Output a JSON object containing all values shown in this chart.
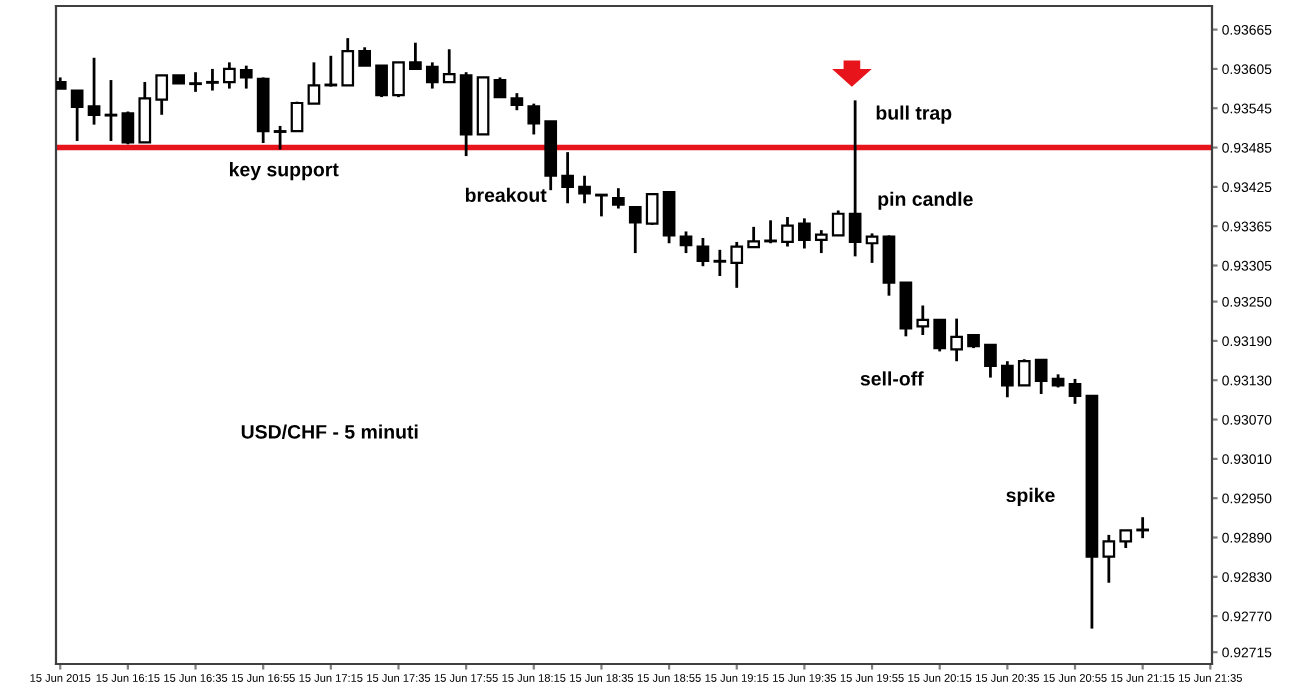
{
  "chart_data": {
    "type": "candlestick",
    "title": "USD/CHF - 5 minuti",
    "annotations": [
      "key support",
      "breakout",
      "bull trap",
      "pin candle",
      "sell-off",
      "spike"
    ],
    "categories": [
      "15 Jun 2015",
      null,
      null,
      null,
      "15 Jun 16:15",
      null,
      null,
      null,
      "15 Jun 16:35",
      null,
      null,
      null,
      "15 Jun 16:55",
      null,
      null,
      null,
      "15 Jun 17:15",
      null,
      null,
      null,
      "15 Jun 17:35",
      null,
      null,
      null,
      "15 Jun 17:55",
      null,
      null,
      null,
      "15 Jun 18:15",
      null,
      null,
      null,
      "15 Jun 18:35",
      null,
      null,
      null,
      "15 Jun 18:55",
      null,
      null,
      null,
      "15 Jun 19:15",
      null,
      null,
      null,
      "15 Jun 19:35",
      null,
      null,
      null,
      "15 Jun 19:55",
      null,
      null,
      null,
      "15 Jun 20:15",
      null,
      null,
      null,
      "15 Jun 20:35",
      null,
      null,
      null,
      "15 Jun 20:55",
      null,
      null,
      null,
      "15 Jun 21:15",
      null,
      null,
      null,
      "15 Jun 21:35"
    ],
    "ohlc": [
      [
        0.93585,
        0.93592,
        0.93575,
        0.93575
      ],
      [
        0.93572,
        0.93572,
        0.93495,
        0.93547
      ],
      [
        0.93548,
        0.93622,
        0.9352,
        0.93535
      ],
      [
        0.93535,
        0.93588,
        0.93495,
        0.93534
      ],
      [
        0.93537,
        0.9354,
        0.9349,
        0.93493
      ],
      [
        0.93493,
        0.93585,
        0.93493,
        0.9356
      ],
      [
        0.93558,
        0.93595,
        0.93535,
        0.93595
      ],
      [
        0.93595,
        0.93595,
        0.93583,
        0.93583
      ],
      [
        0.93583,
        0.936,
        0.9357,
        0.93582
      ],
      [
        0.93585,
        0.93605,
        0.93572,
        0.93584
      ],
      [
        0.93585,
        0.93615,
        0.93575,
        0.93605
      ],
      [
        0.93603,
        0.9361,
        0.93575,
        0.93592
      ],
      [
        0.9359,
        0.93592,
        0.93492,
        0.9351
      ],
      [
        0.9351,
        0.93518,
        0.93482,
        0.93509
      ],
      [
        0.9351,
        0.93555,
        0.9351,
        0.93553
      ],
      [
        0.93552,
        0.93615,
        0.93552,
        0.9358
      ],
      [
        0.9358,
        0.93625,
        0.93578,
        0.93581
      ],
      [
        0.9358,
        0.93652,
        0.9358,
        0.93632
      ],
      [
        0.93632,
        0.93638,
        0.9361,
        0.9361
      ],
      [
        0.9361,
        0.9361,
        0.93562,
        0.93565
      ],
      [
        0.93565,
        0.93615,
        0.93562,
        0.93615
      ],
      [
        0.93615,
        0.93645,
        0.93605,
        0.93605
      ],
      [
        0.93608,
        0.93615,
        0.93575,
        0.93585
      ],
      [
        0.93585,
        0.93635,
        0.93585,
        0.93597
      ],
      [
        0.93595,
        0.936,
        0.93472,
        0.93505
      ],
      [
        0.93505,
        0.93592,
        0.93505,
        0.93592
      ],
      [
        0.93588,
        0.93592,
        0.93562,
        0.93562
      ],
      [
        0.9356,
        0.93568,
        0.93542,
        0.9355
      ],
      [
        0.93548,
        0.93552,
        0.93505,
        0.93522
      ],
      [
        0.93525,
        0.93525,
        0.9342,
        0.93442
      ],
      [
        0.93442,
        0.93478,
        0.934,
        0.93425
      ],
      [
        0.93425,
        0.93442,
        0.934,
        0.93415
      ],
      [
        0.93413,
        0.93413,
        0.9338,
        0.93412
      ],
      [
        0.93408,
        0.93423,
        0.93392,
        0.93398
      ],
      [
        0.93394,
        0.93394,
        0.93324,
        0.93371
      ],
      [
        0.93369,
        0.93414,
        0.93367,
        0.93414
      ],
      [
        0.93417,
        0.93417,
        0.93339,
        0.93351
      ],
      [
        0.93349,
        0.93357,
        0.93324,
        0.93336
      ],
      [
        0.93334,
        0.93347,
        0.93304,
        0.93312
      ],
      [
        0.93312,
        0.93329,
        0.93289,
        0.93311
      ],
      [
        0.93309,
        0.93341,
        0.93271,
        0.93334
      ],
      [
        0.93333,
        0.93364,
        0.93333,
        0.93342
      ],
      [
        0.93342,
        0.93374,
        0.93339,
        0.93343
      ],
      [
        0.93341,
        0.93379,
        0.93334,
        0.93366
      ],
      [
        0.93369,
        0.93377,
        0.93331,
        0.93344
      ],
      [
        0.93344,
        0.93359,
        0.93324,
        0.93352
      ],
      [
        0.93351,
        0.93389,
        0.93351,
        0.93384
      ],
      [
        0.93384,
        0.93557,
        0.93319,
        0.93341
      ],
      [
        0.93339,
        0.93354,
        0.93309,
        0.93349
      ],
      [
        0.93349,
        0.93351,
        0.93259,
        0.93279
      ],
      [
        0.93279,
        0.93279,
        0.93197,
        0.93209
      ],
      [
        0.93212,
        0.93244,
        0.93199,
        0.93222
      ],
      [
        0.93222,
        0.93222,
        0.93174,
        0.93179
      ],
      [
        0.93177,
        0.93224,
        0.93159,
        0.93196
      ],
      [
        0.93199,
        0.93199,
        0.93179,
        0.93182
      ],
      [
        0.93184,
        0.93184,
        0.93134,
        0.93152
      ],
      [
        0.93152,
        0.93159,
        0.93104,
        0.93122
      ],
      [
        0.93122,
        0.93162,
        0.93122,
        0.93159
      ],
      [
        0.93161,
        0.93161,
        0.93109,
        0.93129
      ],
      [
        0.93132,
        0.93139,
        0.93119,
        0.93122
      ],
      [
        0.93124,
        0.93132,
        0.93094,
        0.93106
      ],
      [
        0.93106,
        0.93106,
        0.92751,
        0.92861
      ],
      [
        0.92861,
        0.92894,
        0.92821,
        0.92884
      ],
      [
        0.92884,
        0.92901,
        0.92874,
        0.92901
      ],
      [
        0.92901,
        0.92921,
        0.92889,
        0.92902
      ],
      null,
      null,
      null,
      null
    ],
    "ylim": [
      0.92697,
      0.93701
    ],
    "yticks": [
      {
        "value": 0.93665,
        "label": "0.93665"
      },
      {
        "value": 0.93605,
        "label": "0.93605"
      },
      {
        "value": 0.93545,
        "label": "0.93545"
      },
      {
        "value": 0.93485,
        "label": "0.93485"
      },
      {
        "value": 0.93425,
        "label": "0.93425"
      },
      {
        "value": 0.93365,
        "label": "0.93365"
      },
      {
        "value": 0.93305,
        "label": "0.93305"
      },
      {
        "value": 0.9325,
        "label": "0.93250"
      },
      {
        "value": 0.9319,
        "label": "0.93190"
      },
      {
        "value": 0.9313,
        "label": "0.93130"
      },
      {
        "value": 0.9307,
        "label": "0.93070"
      },
      {
        "value": 0.9301,
        "label": "0.93010"
      },
      {
        "value": 0.9295,
        "label": "0.92950"
      },
      {
        "value": 0.9289,
        "label": "0.92890"
      },
      {
        "value": 0.9283,
        "label": "0.92830"
      },
      {
        "value": 0.9277,
        "label": "0.92770"
      },
      {
        "value": 0.92715,
        "label": "0.92715"
      }
    ],
    "ref_lines": [
      {
        "axis": "y",
        "value": 0.93485,
        "color": "#e8141b"
      }
    ]
  }
}
